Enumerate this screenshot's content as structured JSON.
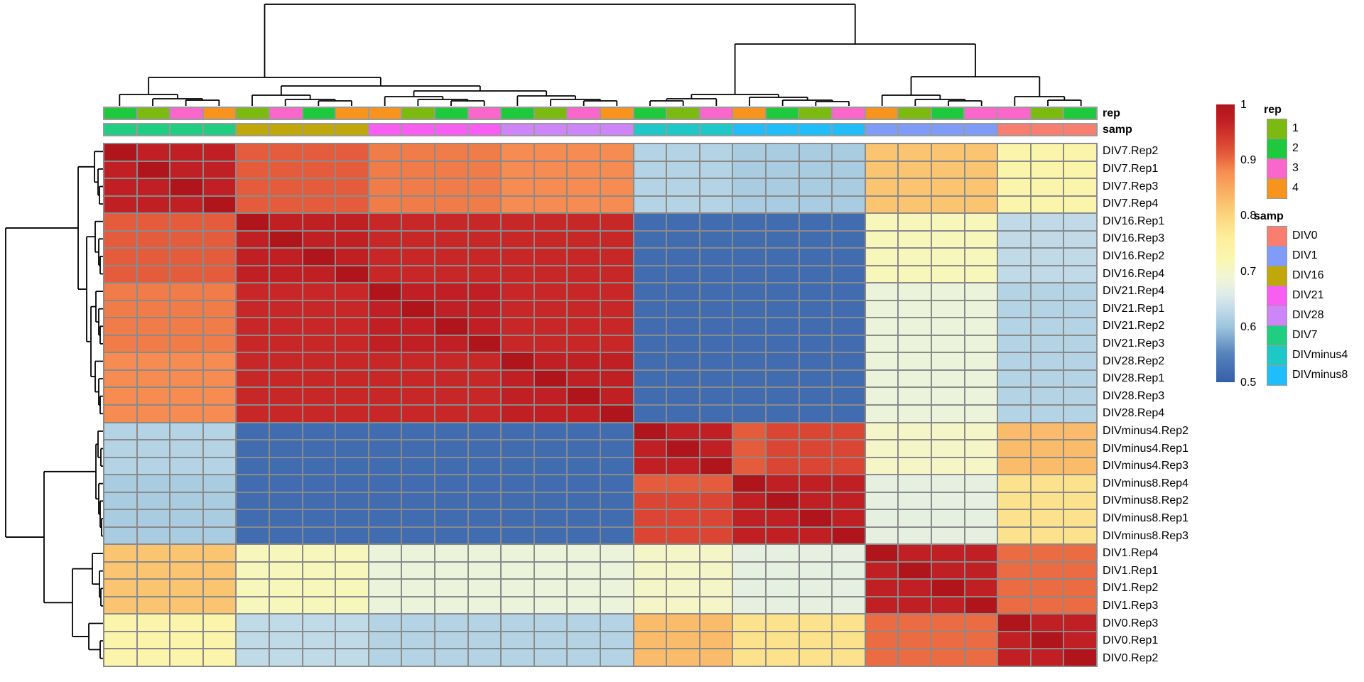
{
  "figure": {
    "kind": "clustered correlation heatmap with dendrograms and column annotations",
    "rep_bar_label": "rep",
    "samp_bar_label": "samp"
  },
  "chart_data": {
    "type": "heatmap",
    "title": "",
    "rows": [
      "DIV7.Rep2",
      "DIV7.Rep1",
      "DIV7.Rep3",
      "DIV7.Rep4",
      "DIV16.Rep1",
      "DIV16.Rep3",
      "DIV16.Rep2",
      "DIV16.Rep4",
      "DIV21.Rep4",
      "DIV21.Rep1",
      "DIV21.Rep2",
      "DIV21.Rep3",
      "DIV28.Rep2",
      "DIV28.Rep1",
      "DIV28.Rep3",
      "DIV28.Rep4",
      "DIVminus4.Rep2",
      "DIVminus4.Rep1",
      "DIVminus4.Rep3",
      "DIVminus8.Rep4",
      "DIVminus8.Rep2",
      "DIVminus8.Rep1",
      "DIVminus8.Rep3",
      "DIV1.Rep4",
      "DIV1.Rep1",
      "DIV1.Rep2",
      "DIV1.Rep3",
      "DIV0.Rep3",
      "DIV0.Rep1",
      "DIV0.Rep2"
    ],
    "columns": [
      "DIV7.Rep2",
      "DIV7.Rep1",
      "DIV7.Rep3",
      "DIV7.Rep4",
      "DIV16.Rep1",
      "DIV16.Rep3",
      "DIV16.Rep2",
      "DIV16.Rep4",
      "DIV21.Rep4",
      "DIV21.Rep1",
      "DIV21.Rep2",
      "DIV21.Rep3",
      "DIV28.Rep2",
      "DIV28.Rep1",
      "DIV28.Rep3",
      "DIV28.Rep4",
      "DIVminus4.Rep2",
      "DIVminus4.Rep1",
      "DIVminus4.Rep3",
      "DIVminus8.Rep4",
      "DIVminus8.Rep2",
      "DIVminus8.Rep1",
      "DIVminus8.Rep3",
      "DIV1.Rep4",
      "DIV1.Rep1",
      "DIV1.Rep2",
      "DIV1.Rep3",
      "DIV0.Rep3",
      "DIV0.Rep1",
      "DIV0.Rep2"
    ],
    "group_order": [
      "DIV7",
      "DIV16",
      "DIV21",
      "DIV28",
      "DIVminus4",
      "DIVminus8",
      "DIV1",
      "DIV0"
    ],
    "block_matrix": [
      [
        0.97,
        0.91,
        0.89,
        0.88,
        0.62,
        0.61,
        0.82,
        0.73
      ],
      [
        0.91,
        0.97,
        0.96,
        0.96,
        0.52,
        0.52,
        0.71,
        0.63
      ],
      [
        0.89,
        0.96,
        0.97,
        0.96,
        0.52,
        0.52,
        0.68,
        0.62
      ],
      [
        0.88,
        0.96,
        0.96,
        0.97,
        0.52,
        0.52,
        0.68,
        0.62
      ],
      [
        0.62,
        0.52,
        0.52,
        0.52,
        0.96,
        0.93,
        0.7,
        0.83
      ],
      [
        0.61,
        0.52,
        0.52,
        0.52,
        0.93,
        0.96,
        0.67,
        0.78
      ],
      [
        0.82,
        0.71,
        0.68,
        0.68,
        0.7,
        0.67,
        0.97,
        0.9
      ],
      [
        0.73,
        0.63,
        0.62,
        0.62,
        0.83,
        0.78,
        0.9,
        0.97
      ]
    ],
    "within_group_value": 0.97,
    "diagonal_value": 1.0,
    "overrides": [
      {
        "sample": "DIVminus8.Rep4",
        "other_group": "DIVminus4",
        "value": 0.91
      }
    ],
    "value_range": [
      0.5,
      1.0
    ],
    "color_scale_stops": [
      [
        0.5,
        "#345FA8"
      ],
      [
        0.55,
        "#5581BC"
      ],
      [
        0.6,
        "#9DC5DD"
      ],
      [
        0.63,
        "#C0DAE8"
      ],
      [
        0.66,
        "#DFEDE8"
      ],
      [
        0.69,
        "#F1F6D4"
      ],
      [
        0.72,
        "#FAF7B0"
      ],
      [
        0.76,
        "#FDEE9C"
      ],
      [
        0.8,
        "#FBD57E"
      ],
      [
        0.84,
        "#F9B264"
      ],
      [
        0.88,
        "#F68C51"
      ],
      [
        0.91,
        "#E55C3C"
      ],
      [
        0.94,
        "#D43B2E"
      ],
      [
        0.97,
        "#C01F24"
      ],
      [
        1.0,
        "#B0151C"
      ]
    ],
    "legend_ticks": [
      "1",
      "0.9",
      "0.8",
      "0.7",
      "0.6",
      "0.5"
    ],
    "legend_tick_values": [
      1,
      0.9,
      0.8,
      0.7,
      0.6,
      0.5
    ],
    "clustering": "dendrograms: columns on top, rows on left; row and column order identical"
  },
  "annotations": {
    "rep_colors": {
      "1": "#7CBA12",
      "2": "#1EC93E",
      "3": "#F967CB",
      "4": "#F7941D"
    },
    "samp_colors": {
      "DIV0": "#F87E70",
      "DIV1": "#7E9CF8",
      "DIV16": "#C0A80A",
      "DIV21": "#F95EF3",
      "DIV28": "#CE85F8",
      "DIV7": "#1FCE80",
      "DIVminus4": "#1EC8C6",
      "DIVminus8": "#1FBEFB"
    }
  },
  "legends": {
    "rep": {
      "title": "rep",
      "items": [
        {
          "label": "1",
          "color": "#7CBA12"
        },
        {
          "label": "2",
          "color": "#1EC93E"
        },
        {
          "label": "3",
          "color": "#F967CB"
        },
        {
          "label": "4",
          "color": "#F7941D"
        }
      ]
    },
    "samp": {
      "title": "samp",
      "items": [
        {
          "label": "DIV0",
          "color": "#F87E70"
        },
        {
          "label": "DIV1",
          "color": "#7E9CF8"
        },
        {
          "label": "DIV16",
          "color": "#C0A80A"
        },
        {
          "label": "DIV21",
          "color": "#F95EF3"
        },
        {
          "label": "DIV28",
          "color": "#CE85F8"
        },
        {
          "label": "DIV7",
          "color": "#1FCE80"
        },
        {
          "label": "DIVminus4",
          "color": "#1EC8C6"
        },
        {
          "label": "DIVminus8",
          "color": "#1FBEFB"
        }
      ]
    }
  }
}
